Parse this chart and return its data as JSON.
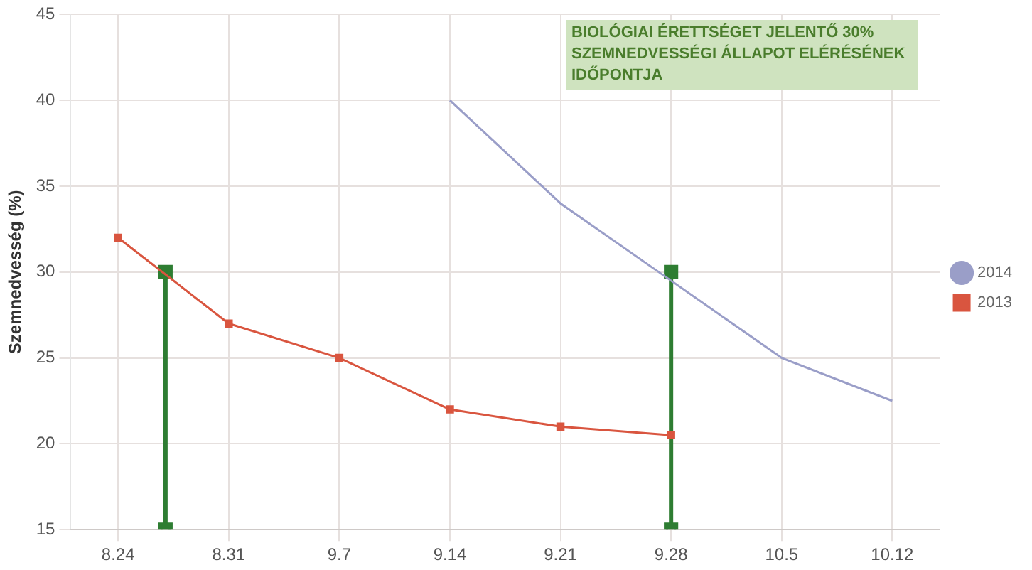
{
  "chart_data": {
    "type": "line",
    "ylabel": "Szemnedvesség (%)",
    "xlim": [
      "--08-21",
      "--10-15"
    ],
    "xticks": [
      {
        "value": "--08-24",
        "label": "8.24"
      },
      {
        "value": "--08-31",
        "label": "8.31"
      },
      {
        "value": "--09-07",
        "label": "9.7"
      },
      {
        "value": "--09-14",
        "label": "9.14"
      },
      {
        "value": "--09-21",
        "label": "9.21"
      },
      {
        "value": "--09-28",
        "label": "9.28"
      },
      {
        "value": "--10-05",
        "label": "10.5"
      },
      {
        "value": "--10-12",
        "label": "10.12"
      }
    ],
    "ylim": [
      15,
      45
    ],
    "yticks": [
      15,
      20,
      25,
      30,
      35,
      40,
      45
    ],
    "grid": true,
    "legend": "right",
    "annotations": [
      "BIOLÓGIAI ÉRETTSÉGET JELENTŐ 30% SZEMNEDVESSÉGI ÁLLAPOT ELÉRÉSÉNEK IDŐPONTJA"
    ],
    "series": [
      {
        "name": "2014",
        "color": "#9a9ec8",
        "marker": "none",
        "x": [
          "--09-14",
          "--09-21",
          "--09-28",
          "--10-05",
          "--10-12"
        ],
        "values": [
          40,
          34,
          29.5,
          25,
          22.5
        ]
      },
      {
        "name": "2013",
        "color": "#d9553f",
        "marker": "square",
        "x": [
          "--08-24",
          "--08-31",
          "--09-07",
          "--09-14",
          "--09-21",
          "--09-28"
        ],
        "values": [
          32,
          27,
          25,
          22,
          21,
          20.5
        ]
      },
      {
        "color": "#2e7d32",
        "marker": "square",
        "x": [
          "--08-27",
          "--08-27"
        ],
        "values": [
          15,
          30
        ]
      },
      {
        "color": "#2e7d32",
        "marker": "square",
        "x": [
          "--09-28",
          "--09-28"
        ],
        "values": [
          15,
          30
        ]
      }
    ]
  }
}
